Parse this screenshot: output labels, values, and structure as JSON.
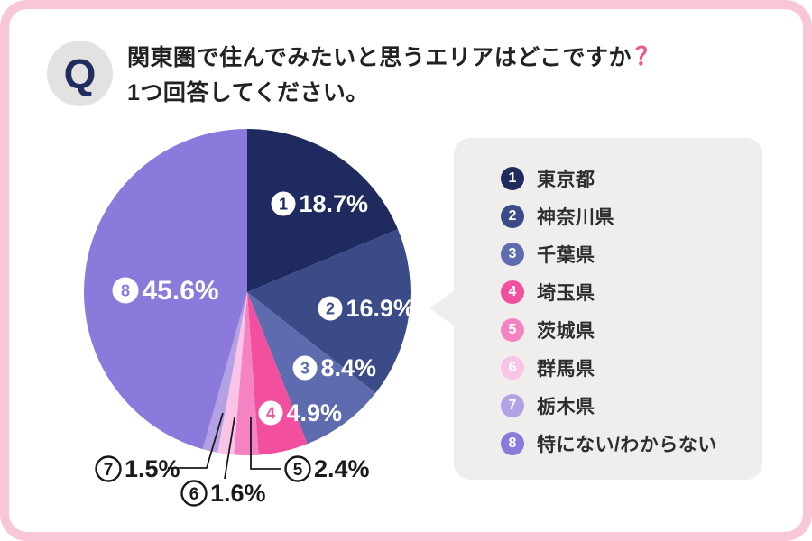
{
  "header": {
    "badge": "Q",
    "question_line1": "関東圏で住んでみたいと思うエリアはどこですか",
    "question_mark": "？",
    "question_line2": "1つ回答してください。"
  },
  "colors": {
    "frame": "#f9c6d5",
    "card_bg": "#ffffff",
    "badge_bg": "#e4e2e0",
    "badge_text": "#1f2d5f",
    "question_text": "#222222",
    "question_mark": "#f2548f",
    "legend_bg": "#efeeed",
    "legend_text": "#2e2e2e",
    "pct_text": "#ffffff",
    "callout_ink": "#1a1a1a"
  },
  "chart_data": {
    "type": "pie",
    "title": "関東圏で住んでみたいと思うエリアはどこですか？ 1つ回答してください。",
    "start_angle_deg": 0,
    "direction": "clockwise",
    "legend_position": "right",
    "slices": [
      {
        "no": "1",
        "label": "東京都",
        "value": 18.7,
        "pct_label": "18.7%",
        "color": "#1f2b5e",
        "label_style": "inside"
      },
      {
        "no": "2",
        "label": "神奈川県",
        "value": 16.9,
        "pct_label": "16.9%",
        "color": "#3b4b87",
        "label_style": "inside"
      },
      {
        "no": "3",
        "label": "千葉県",
        "value": 8.4,
        "pct_label": "8.4%",
        "color": "#5e6bae",
        "label_style": "inside"
      },
      {
        "no": "4",
        "label": "埼玉県",
        "value": 4.9,
        "pct_label": "4.9%",
        "color": "#f2509e",
        "label_style": "inside"
      },
      {
        "no": "5",
        "label": "茨城県",
        "value": 2.4,
        "pct_label": "2.4%",
        "color": "#f583c4",
        "label_style": "callout"
      },
      {
        "no": "6",
        "label": "群馬県",
        "value": 1.6,
        "pct_label": "1.6%",
        "color": "#fac4e6",
        "label_style": "callout"
      },
      {
        "no": "7",
        "label": "栃木県",
        "value": 1.5,
        "pct_label": "1.5%",
        "color": "#b3a0e5",
        "label_style": "callout"
      },
      {
        "no": "8",
        "label": "特にない/わからない",
        "value": 45.6,
        "pct_label": "45.6%",
        "color": "#8b79dc",
        "label_style": "inside-big"
      }
    ]
  }
}
